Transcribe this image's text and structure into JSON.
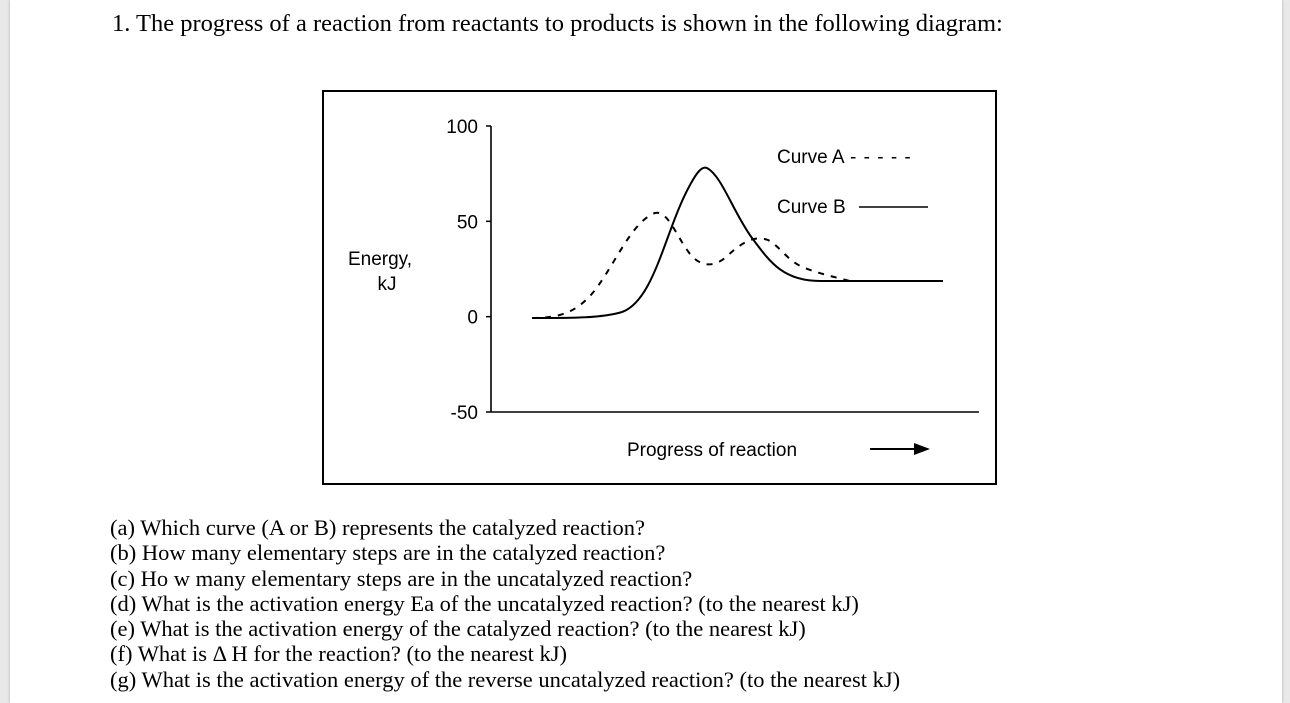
{
  "question_title": "1. The progress of a reaction from reactants to products is shown in the following diagram:",
  "chart_data": {
    "type": "line",
    "ylabel": "Energy,\nkJ",
    "xlabel": "Progress of reaction",
    "yticks": [
      100,
      50,
      0,
      -50
    ],
    "ylim": [
      -50,
      100
    ],
    "series": [
      {
        "name": "Curve A",
        "style": "dashed",
        "legend_label": "Curve A",
        "legend_marker": "- - - - -",
        "description_values": {
          "reactants": 0,
          "first_peak": 50,
          "intermediate": 28,
          "second_peak": 40,
          "products": 20
        }
      },
      {
        "name": "Curve B",
        "style": "solid",
        "legend_label": "Curve B",
        "description_values": {
          "reactants": 0,
          "peak": 78,
          "products": 20
        }
      }
    ]
  },
  "questions": [
    "(a) Which curve (A or B) represents the catalyzed reaction?",
    "(b) How many elementary steps are in the catalyzed reaction?",
    "(c) Ho w many elementary steps are in the uncatalyzed reaction?",
    "(d) What is the activation energy Ea of the uncatalyzed reaction? (to the nearest kJ)",
    "(e) What is the activation energy of the catalyzed reaction? (to the nearest kJ)",
    "(f) What is Δ  H for the reaction? (to the nearest kJ)",
    "(g) What is the activation energy of the reverse uncatalyzed reaction? (to the nearest kJ)"
  ]
}
